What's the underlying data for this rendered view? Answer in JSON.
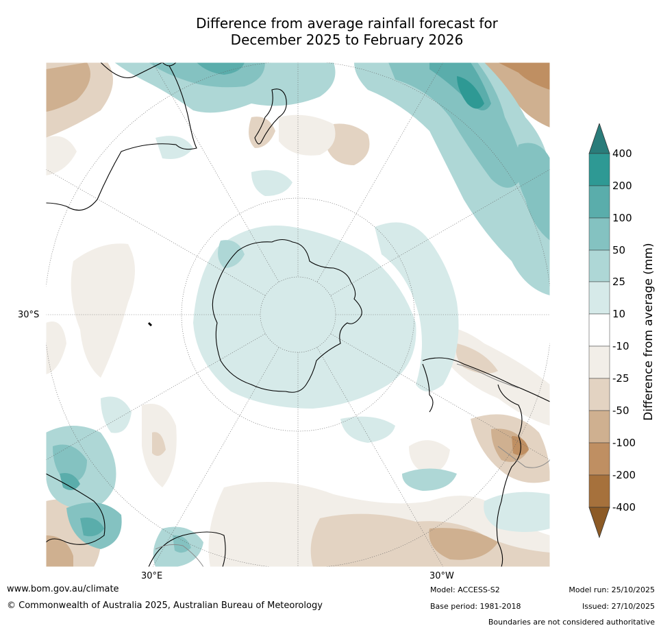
{
  "title": {
    "line1": "Difference from average rainfall forecast for",
    "line2": "December 2025 to February 2026"
  },
  "map": {
    "projection": "south-polar",
    "labels": {
      "lat_30s": "30°S",
      "lon_30e": "30°E",
      "lon_30w": "30°W"
    }
  },
  "colorbar": {
    "title": "Difference from average (mm)",
    "ticks": [
      "400",
      "200",
      "100",
      "50",
      "25",
      "10",
      "-10",
      "-25",
      "-50",
      "-100",
      "-200",
      "-400"
    ],
    "colors": {
      "over": "#2a7c7a",
      "wet_400": "#2e9994",
      "wet_200": "#5aadab",
      "wet_100": "#84c2c1",
      "wet_50": "#aed7d6",
      "wet_25": "#d6eae9",
      "neutral": "#ffffff",
      "dry_10": "#f2eee8",
      "dry_25": "#e3d3c2",
      "dry_50": "#cfb090",
      "dry_100": "#bf8f62",
      "dry_200": "#a6713c",
      "under": "#8c5a25"
    }
  },
  "footer": {
    "url": "www.bom.gov.au/climate",
    "copyright": "© Commonwealth of Australia 2025, Australian Bureau of Meteorology",
    "model": "Model: ACCESS-S2",
    "base_period": "Base period: 1981-2018",
    "model_run": "Model run: 25/10/2025",
    "issued": "Issued: 27/10/2025",
    "boundaries": "Boundaries are not considered authoritative"
  }
}
